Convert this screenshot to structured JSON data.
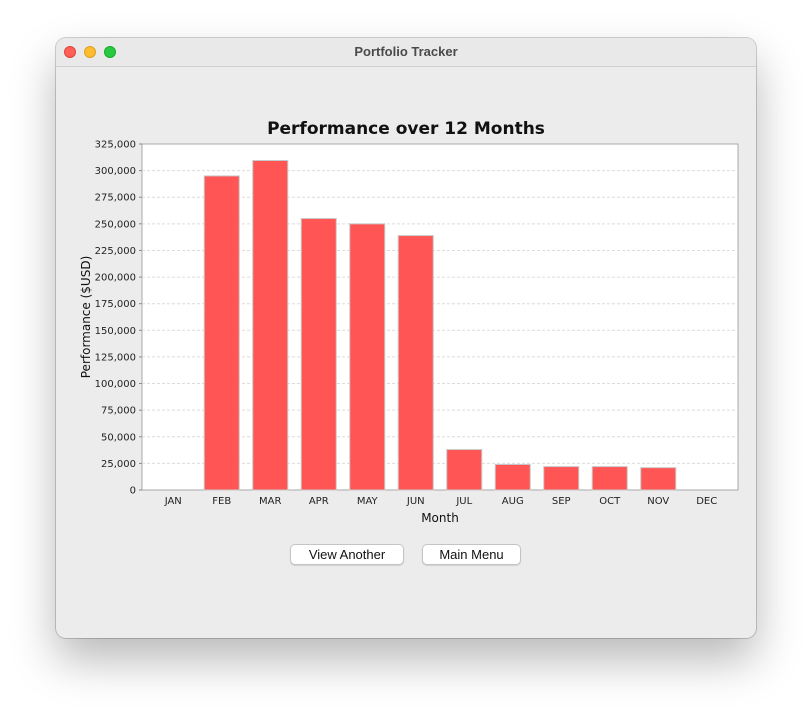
{
  "window": {
    "title": "Portfolio Tracker"
  },
  "chart_data": {
    "type": "bar",
    "title": "Performance over 12 Months",
    "xlabel": "Month",
    "ylabel": "Performance ($USD)",
    "categories": [
      "JAN",
      "FEB",
      "MAR",
      "APR",
      "MAY",
      "JUN",
      "JUL",
      "AUG",
      "SEP",
      "OCT",
      "NOV",
      "DEC"
    ],
    "values": [
      0,
      295000,
      309500,
      255000,
      250000,
      239000,
      38000,
      24000,
      22000,
      22000,
      21000,
      0
    ],
    "ylim": [
      0,
      325000
    ],
    "yticks": [
      "0",
      "25,000",
      "50,000",
      "75,000",
      "100,000",
      "125,000",
      "150,000",
      "175,000",
      "200,000",
      "225,000",
      "250,000",
      "275,000",
      "300,000",
      "325,000"
    ],
    "grid": true,
    "bar_color": "#ff5555",
    "bar_border": "#c8c8c8"
  },
  "buttons": {
    "view_another": "View Another",
    "main_menu": "Main Menu"
  }
}
